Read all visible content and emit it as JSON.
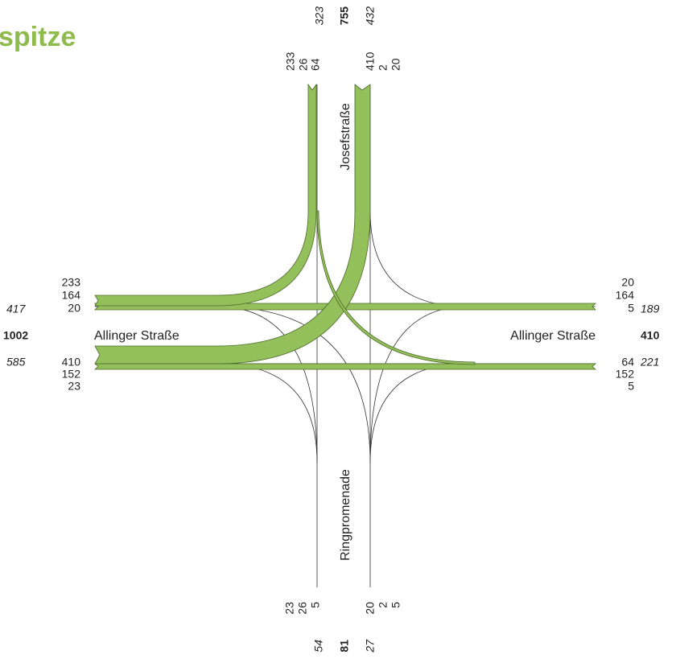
{
  "title": "spitze",
  "streets": {
    "north": "Josefstraße",
    "west": "Allinger Straße",
    "east": "Allinger Straße",
    "south": "Ringpromenade"
  },
  "north": {
    "totals": [
      323,
      755,
      432
    ],
    "in": [
      233,
      26,
      64
    ],
    "out": [
      410,
      2,
      20
    ]
  },
  "west": {
    "totals": [
      417,
      1002,
      585
    ],
    "in": [
      233,
      164,
      20
    ],
    "out": [
      410,
      152,
      23
    ]
  },
  "east": {
    "totals": [
      189,
      410,
      221
    ],
    "in": [
      20,
      164,
      5
    ],
    "out": [
      64,
      152,
      5
    ]
  },
  "south": {
    "totals": [
      54,
      81,
      27
    ],
    "in": [
      23,
      26,
      5
    ],
    "out": [
      20,
      2,
      5
    ]
  }
}
